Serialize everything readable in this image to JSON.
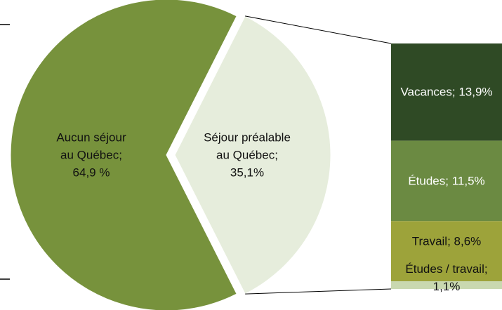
{
  "chart_data": {
    "type": "pie-of-bar",
    "categories": [
      "Aucun séjour au Québec;",
      "Séjour préalable au Québec;"
    ],
    "values": [
      64.9,
      35.1
    ],
    "value_labels": [
      "64,9 %",
      "35,1%"
    ],
    "colors": [
      "#77923c",
      "#e6eddc"
    ],
    "bar": {
      "categories": [
        "Vacances;",
        "Études;",
        "Travail;",
        "Études / travail;"
      ],
      "values": [
        13.9,
        11.5,
        8.6,
        1.1
      ],
      "value_labels": [
        "13,9%",
        "11,5%",
        "8,6%",
        "1,1%"
      ],
      "colors": [
        "#2f4a25",
        "#6b8a42",
        "#9da33a",
        "#c9d8b0"
      ]
    }
  }
}
